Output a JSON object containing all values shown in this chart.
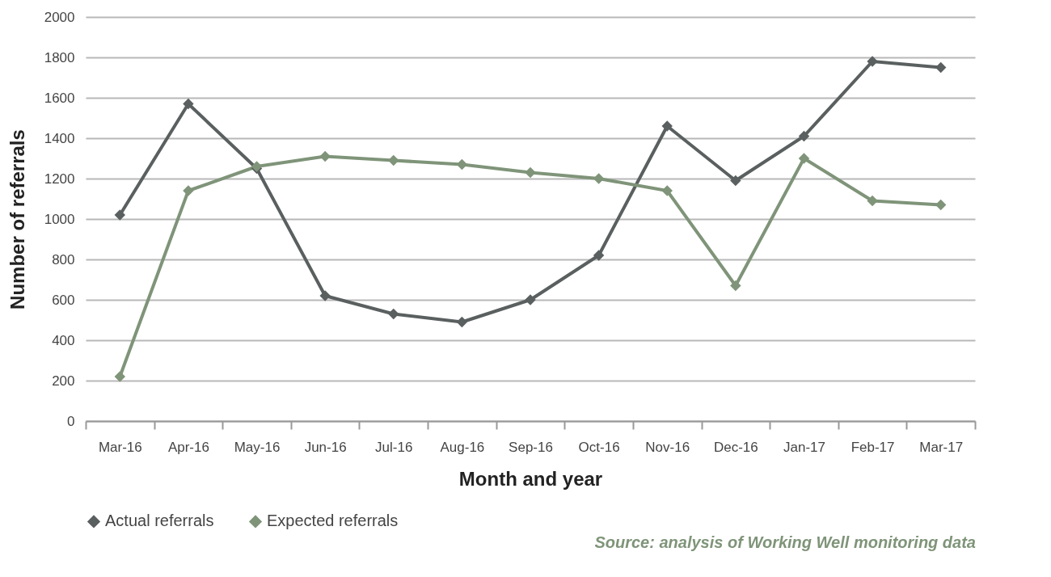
{
  "chart_data": {
    "type": "line",
    "xlabel": "Month and year",
    "ylabel": "Number of referrals",
    "categories": [
      "Mar-16",
      "Apr-16",
      "May-16",
      "Jun-16",
      "Jul-16",
      "Aug-16",
      "Sep-16",
      "Oct-16",
      "Nov-16",
      "Dec-16",
      "Jan-17",
      "Feb-17",
      "Mar-17"
    ],
    "series": [
      {
        "name": "Actual referrals",
        "color": "#5a5f5f",
        "values": [
          1020,
          1570,
          1250,
          620,
          530,
          490,
          600,
          820,
          1460,
          1190,
          1410,
          1780,
          1750
        ]
      },
      {
        "name": "Expected referrals",
        "color": "#7f9479",
        "values": [
          220,
          1140,
          1260,
          1310,
          1290,
          1270,
          1230,
          1200,
          1140,
          670,
          1300,
          1090,
          1070
        ]
      }
    ],
    "ylim": [
      0,
      2000
    ],
    "yticks": [
      0,
      200,
      400,
      600,
      800,
      1000,
      1200,
      1400,
      1600,
      1800,
      2000
    ],
    "grid": "y",
    "legend": "bottom",
    "marker": "diamond",
    "line_style": "solid",
    "annotations": [
      "Source: analysis of Working Well monitoring data"
    ]
  }
}
